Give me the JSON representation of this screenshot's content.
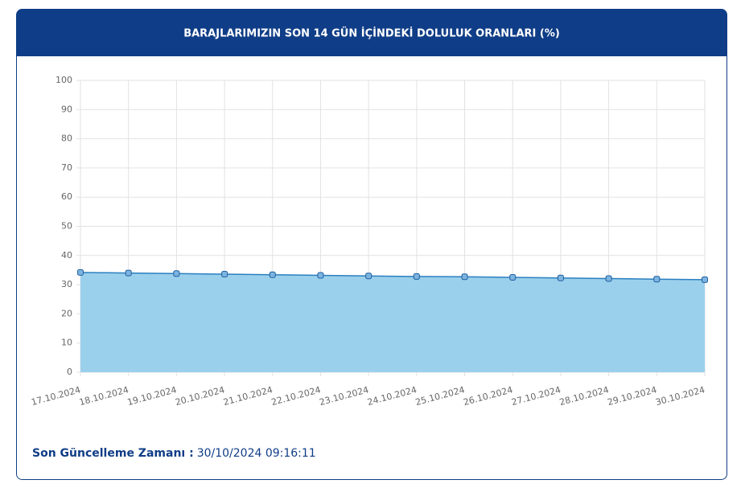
{
  "chart_data": {
    "type": "area",
    "title": "BARAJLARIMIZIN SON 14 GÜN İÇİNDEKİ DOLULUK ORANLARI (%)",
    "categories": [
      "17.10.2024",
      "18.10.2024",
      "19.10.2024",
      "20.10.2024",
      "21.10.2024",
      "22.10.2024",
      "23.10.2024",
      "24.10.2024",
      "25.10.2024",
      "26.10.2024",
      "27.10.2024",
      "28.10.2024",
      "29.10.2024",
      "30.10.2024"
    ],
    "values": [
      34.2,
      34.0,
      33.8,
      33.6,
      33.4,
      33.2,
      33.0,
      32.8,
      32.7,
      32.5,
      32.3,
      32.1,
      31.9,
      31.7
    ],
    "color": "#9bd0ec",
    "line_color": "#2b7fc0",
    "ylim": [
      0,
      100
    ],
    "yticks": [
      0,
      10,
      20,
      30,
      40,
      50,
      60,
      70,
      80,
      90,
      100
    ],
    "grid": true
  },
  "footer": {
    "label": "Son Güncelleme Zamanı :",
    "value": "30/10/2024 09:16:11"
  }
}
